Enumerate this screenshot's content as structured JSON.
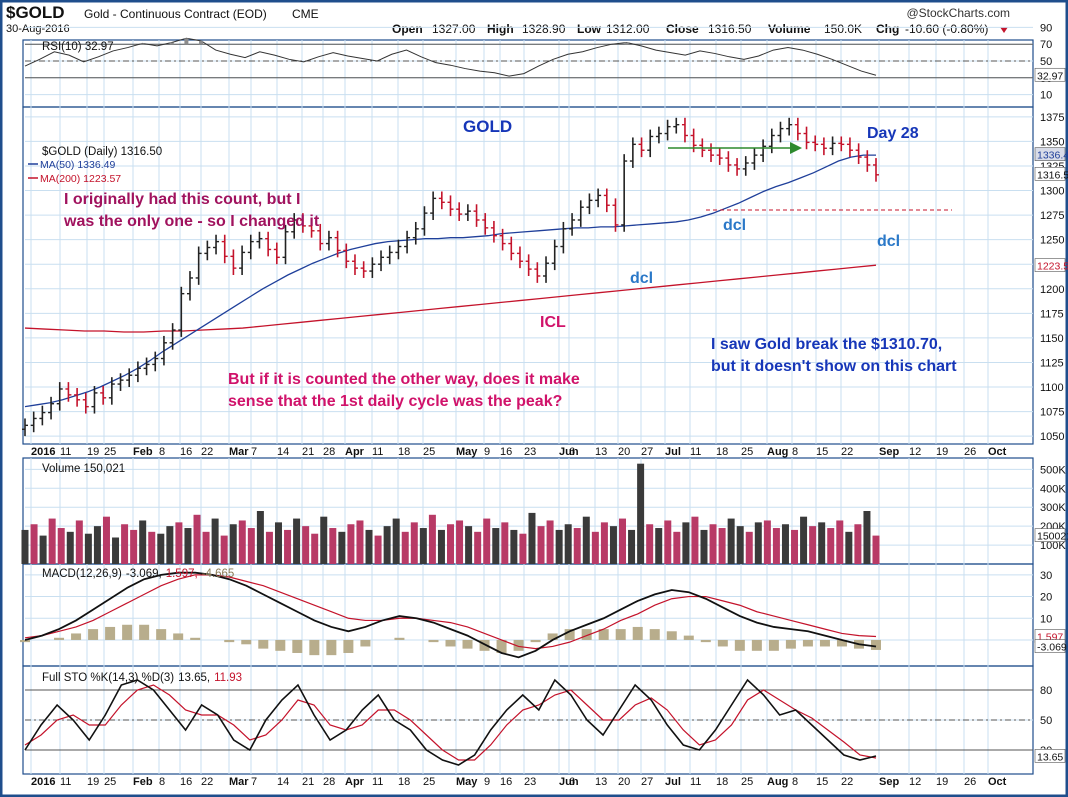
{
  "header": {
    "symbol": "$GOLD",
    "name": "Gold - Continuous Contract (EOD)",
    "exchange": "CME",
    "date": "30-Aug-2016",
    "brand": "@StockCharts.com",
    "open_label": "Open",
    "open": "1327.00",
    "high_label": "High",
    "high": "1328.90",
    "low_label": "Low",
    "low": "1312.00",
    "close_label": "Close",
    "close": "1316.50",
    "volume_label": "Volume",
    "volume": "150.0K",
    "chg_label": "Chg",
    "chg": "-10.60 (-0.80%)"
  },
  "colors": {
    "frame": "#1f4e8c",
    "grid": "#c9dff0",
    "up": "#222222",
    "down": "#c4132b",
    "ma50": "#1f3f9a",
    "ma200": "#c4132b",
    "annotation_purple": "#a0125e",
    "annotation_magenta": "#d0126a",
    "annotation_blue": "#1636b8",
    "annotation_light_blue": "#2a78c8",
    "arrow": "#2d8a2d",
    "vol_up": "#3a3a3a",
    "vol_down": "#b83a66",
    "rsi_fill": "#8c8c8c",
    "macd_line": "#111111",
    "signal_line": "#c4132b",
    "histogram": "#b8ad8c"
  },
  "chart_data": [
    {
      "type": "line",
      "title": "RSI(10) 32.97",
      "ylim": [
        0,
        100
      ],
      "y_ticks": [
        "90",
        "70",
        "50",
        "30",
        "10"
      ],
      "last_value_label": "32.97",
      "series": [
        {
          "name": "RSI(10)",
          "values": [
            44,
            52,
            61,
            57,
            49,
            55,
            62,
            66,
            71,
            68,
            72,
            77,
            74,
            63,
            58,
            54,
            61,
            57,
            52,
            49,
            55,
            60,
            56,
            53,
            50,
            58,
            63,
            55,
            48,
            45,
            41,
            38,
            36,
            32,
            35,
            44,
            52,
            58,
            61,
            66,
            70,
            72,
            68,
            63,
            60,
            57,
            62,
            59,
            55,
            52,
            56,
            63,
            66,
            63,
            58,
            52,
            45,
            38,
            33
          ]
        }
      ]
    },
    {
      "type": "line",
      "title": "$GOLD (Daily) 1316.50",
      "ylim": [
        1042,
        1385
      ],
      "y_ticks": [
        "1375",
        "1350",
        "1325",
        "1300",
        "1275",
        "1250",
        "1225",
        "1200",
        "1175",
        "1150",
        "1125",
        "1100",
        "1075",
        "1050"
      ],
      "x_ticks": [
        "2016",
        "11",
        "19",
        "25",
        "Feb",
        "8",
        "16",
        "22",
        "Mar",
        "7",
        "14",
        "21",
        "28",
        "Apr",
        "11",
        "18",
        "25",
        "May",
        "9",
        "16",
        "23",
        "Jun",
        "6",
        "13",
        "20",
        "27",
        "Jul",
        "11",
        "18",
        "25",
        "Aug",
        "8",
        "15",
        "22",
        "Sep",
        "12",
        "19",
        "26",
        "Oct"
      ],
      "last_value_labels": [
        "1336.49",
        "1316.50",
        "1223.57"
      ],
      "close_series": [
        1061,
        1068,
        1074,
        1083,
        1098,
        1092,
        1087,
        1080,
        1094,
        1089,
        1103,
        1107,
        1112,
        1119,
        1123,
        1129,
        1145,
        1158,
        1195,
        1211,
        1236,
        1242,
        1248,
        1233,
        1221,
        1237,
        1248,
        1251,
        1240,
        1232,
        1258,
        1270,
        1264,
        1259,
        1246,
        1252,
        1239,
        1228,
        1221,
        1218,
        1225,
        1232,
        1237,
        1243,
        1252,
        1261,
        1277,
        1292,
        1288,
        1281,
        1276,
        1279,
        1270,
        1262,
        1254,
        1246,
        1236,
        1228,
        1220,
        1213,
        1226,
        1243,
        1261,
        1270,
        1283,
        1290,
        1295,
        1285,
        1265,
        1330,
        1347,
        1341,
        1355,
        1358,
        1365,
        1367,
        1356,
        1346,
        1341,
        1336,
        1333,
        1326,
        1322,
        1328,
        1336,
        1345,
        1356,
        1363,
        1367,
        1358,
        1349,
        1347,
        1343,
        1348,
        1347,
        1341,
        1334,
        1326,
        1316
      ],
      "ma50": [
        1080,
        1082,
        1084,
        1087,
        1091,
        1095,
        1100,
        1106,
        1112,
        1119,
        1127,
        1136,
        1144,
        1152,
        1160,
        1168,
        1176,
        1184,
        1192,
        1200,
        1207,
        1214,
        1220,
        1226,
        1231,
        1236,
        1240,
        1243,
        1246,
        1248,
        1249,
        1250,
        1251,
        1251,
        1252,
        1252,
        1253,
        1254,
        1256,
        1257,
        1258,
        1259,
        1260,
        1261,
        1262,
        1262,
        1263,
        1263,
        1264,
        1265,
        1266,
        1267,
        1268,
        1270,
        1273,
        1277,
        1282,
        1287,
        1293,
        1299,
        1304,
        1308,
        1313,
        1318,
        1324,
        1330,
        1334,
        1336,
        1336
      ],
      "ma200": [
        1160,
        1159,
        1158,
        1157,
        1157,
        1156,
        1156,
        1157,
        1157,
        1158,
        1159,
        1160,
        1162,
        1164,
        1166,
        1168,
        1170,
        1172,
        1174,
        1176,
        1178,
        1180,
        1182,
        1184,
        1186,
        1188,
        1190,
        1192,
        1194,
        1196,
        1198,
        1200,
        1202,
        1204,
        1206,
        1208,
        1210,
        1212,
        1214,
        1216,
        1218,
        1220,
        1222,
        1224
      ]
    },
    {
      "type": "bar",
      "title": "Volume 150,021",
      "y_ticks": [
        "500K",
        "400K",
        "300K",
        "200K",
        "100K"
      ],
      "last_value_label": "150021",
      "values_k": [
        180,
        210,
        150,
        240,
        190,
        170,
        230,
        160,
        200,
        250,
        140,
        210,
        180,
        230,
        170,
        160,
        200,
        220,
        190,
        260,
        170,
        240,
        150,
        210,
        230,
        190,
        280,
        170,
        220,
        180,
        240,
        200,
        160,
        250,
        190,
        170,
        210,
        230,
        180,
        150,
        200,
        240,
        170,
        220,
        190,
        260,
        180,
        210,
        230,
        200,
        170,
        240,
        190,
        220,
        180,
        160,
        270,
        200,
        230,
        180,
        210,
        190,
        250,
        170,
        220,
        200,
        240,
        180,
        530,
        210,
        190,
        230,
        170,
        220,
        250,
        180,
        210,
        190,
        240,
        200,
        170,
        220,
        230,
        190,
        210,
        180,
        250,
        200,
        220,
        190,
        230,
        170,
        210,
        280,
        150
      ],
      "down_flags": [
        0,
        1,
        0,
        1,
        1,
        0,
        1,
        0,
        0,
        1,
        0,
        1,
        1,
        0,
        1,
        0,
        0,
        1,
        0,
        1,
        1,
        0,
        1,
        0,
        1,
        1,
        0,
        1,
        0,
        1,
        0,
        1,
        1,
        0,
        1,
        0,
        1,
        1,
        0,
        1,
        0,
        0,
        1,
        1,
        0,
        1,
        0,
        1,
        1,
        0,
        1,
        1,
        0,
        1,
        0,
        1,
        0,
        1,
        1,
        0,
        0,
        1,
        0,
        1,
        1,
        0,
        1,
        0,
        0,
        1,
        0,
        1,
        1,
        0,
        1,
        0,
        1,
        1,
        0,
        0,
        1,
        0,
        1,
        1,
        0,
        1,
        0,
        1,
        0,
        1,
        1,
        0,
        1,
        0,
        1
      ]
    },
    {
      "type": "line",
      "title": "MACD(12,26,9) -3.069, 1.597, -4.665",
      "title_parts": [
        "MACD(12,26,9)",
        "-3.069,",
        "1.597,",
        "-4.665"
      ],
      "ylim": [
        -12,
        35
      ],
      "y_ticks": [
        "30",
        "20",
        "10",
        "0"
      ],
      "last_value_labels": [
        "1.597",
        "-3.069"
      ],
      "series": [
        {
          "name": "MACD",
          "values": [
            0,
            2,
            5,
            9,
            14,
            19,
            24,
            28,
            30,
            31,
            31,
            30,
            28,
            25,
            21,
            17,
            13,
            9,
            6,
            4,
            6,
            9,
            11,
            10,
            8,
            5,
            2,
            -2,
            -6,
            -8,
            -5,
            0,
            4,
            7,
            10,
            14,
            18,
            21,
            23,
            22,
            19,
            15,
            11,
            8,
            6,
            5,
            4,
            2,
            0,
            -2,
            -3
          ]
        },
        {
          "name": "Signal",
          "values": [
            1,
            2,
            4,
            6,
            9,
            13,
            17,
            21,
            25,
            28,
            30,
            30,
            29,
            27,
            25,
            22,
            19,
            16,
            13,
            10,
            9,
            9,
            10,
            10,
            9,
            8,
            6,
            3,
            0,
            -3,
            -4,
            -3,
            -1,
            2,
            5,
            9,
            12,
            16,
            19,
            20,
            20,
            18,
            16,
            13,
            11,
            9,
            7,
            5,
            3,
            2,
            1.6
          ]
        }
      ]
    },
    {
      "type": "line",
      "title": "Full STO %K(14,3) %D(3) 13.65, 11.93",
      "title_parts": [
        "Full STO %K(14,3) %D(3)",
        "13.65,",
        "11.93"
      ],
      "ylim": [
        0,
        100
      ],
      "y_ticks": [
        "80",
        "50",
        "20"
      ],
      "last_value_label": "13.65",
      "series": [
        {
          "name": "%K",
          "values": [
            20,
            45,
            65,
            50,
            30,
            55,
            85,
            90,
            80,
            60,
            40,
            65,
            55,
            30,
            20,
            50,
            70,
            85,
            55,
            30,
            40,
            60,
            75,
            50,
            40,
            20,
            10,
            5,
            15,
            40,
            60,
            75,
            60,
            90,
            75,
            50,
            35,
            60,
            85,
            70,
            45,
            25,
            20,
            40,
            65,
            90,
            75,
            55,
            60,
            45,
            30,
            15,
            10,
            14
          ]
        },
        {
          "name": "%D",
          "values": [
            25,
            35,
            50,
            55,
            45,
            45,
            65,
            80,
            85,
            75,
            60,
            55,
            55,
            45,
            30,
            35,
            50,
            70,
            65,
            45,
            40,
            45,
            60,
            60,
            50,
            35,
            20,
            10,
            10,
            25,
            45,
            60,
            65,
            75,
            80,
            65,
            50,
            50,
            65,
            72,
            60,
            40,
            25,
            30,
            45,
            70,
            80,
            70,
            60,
            52,
            40,
            28,
            15,
            12
          ]
        }
      ]
    }
  ],
  "annotations": {
    "gold": "GOLD",
    "day28": "Day 28",
    "first_count_line1": "I originally had this count, but I",
    "first_count_line2": "was the only one - so I changed it",
    "dcl": "dcl",
    "icl": "ICL",
    "other_way_line1": "But if it is counted the other way, does it make",
    "other_way_line2": "sense that the 1st daily cycle was the peak?",
    "break_line1": "I saw Gold break the $1310.70,",
    "break_line2": "but it doesn't show on this chart"
  },
  "legend": {
    "main": "$GOLD (Daily) 1316.50",
    "ma50": "MA(50) 1336.49",
    "ma200": "MA(200) 1223.57"
  }
}
